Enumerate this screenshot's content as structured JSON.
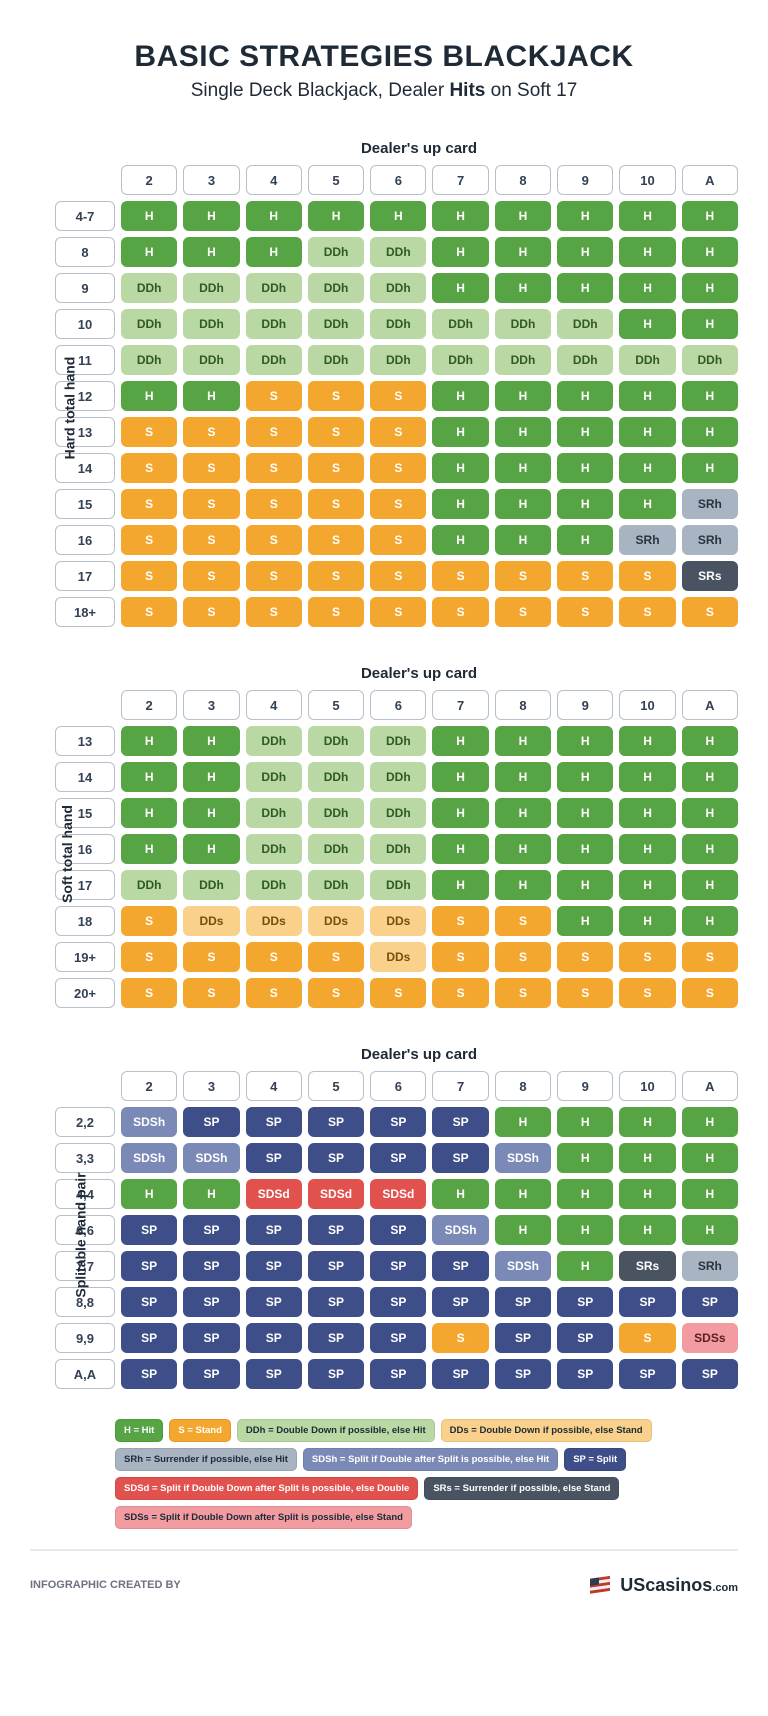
{
  "title": "BASIC STRATEGIES BLACKJACK",
  "subtitle_pre": "Single Deck Blackjack, Dealer ",
  "subtitle_bold": "Hits",
  "subtitle_post": " on Soft 17",
  "dealer_label": "Dealer's up card",
  "dealer_cards": [
    "2",
    "3",
    "4",
    "5",
    "6",
    "7",
    "8",
    "9",
    "10",
    "A"
  ],
  "colors": {
    "H": "#57a445",
    "S": "#f3a72e",
    "DDh": "#b9d8a3",
    "DDs": "#f9d18a",
    "SRh": "#a9b4c2",
    "SRs": "#4a5361",
    "SP": "#3e4e88",
    "SDSh": "#7b89b6",
    "SDSd": "#e1524f",
    "SDSs": "#f29ba0"
  },
  "text_colors": {
    "DDh": "#2f5a22",
    "DDs": "#7a4d0a",
    "SDSh": "#ffffff",
    "SRh": "#2b3340",
    "SDSs": "#5a1f23"
  },
  "hard": {
    "side": "Hard total hand",
    "rows": [
      "4-7",
      "8",
      "9",
      "10",
      "11",
      "12",
      "13",
      "14",
      "15",
      "16",
      "17",
      "18+"
    ],
    "cells": [
      [
        "H",
        "H",
        "H",
        "H",
        "H",
        "H",
        "H",
        "H",
        "H",
        "H"
      ],
      [
        "H",
        "H",
        "H",
        "DDh",
        "DDh",
        "H",
        "H",
        "H",
        "H",
        "H"
      ],
      [
        "DDh",
        "DDh",
        "DDh",
        "DDh",
        "DDh",
        "H",
        "H",
        "H",
        "H",
        "H"
      ],
      [
        "DDh",
        "DDh",
        "DDh",
        "DDh",
        "DDh",
        "DDh",
        "DDh",
        "DDh",
        "H",
        "H"
      ],
      [
        "DDh",
        "DDh",
        "DDh",
        "DDh",
        "DDh",
        "DDh",
        "DDh",
        "DDh",
        "DDh",
        "DDh"
      ],
      [
        "H",
        "H",
        "S",
        "S",
        "S",
        "H",
        "H",
        "H",
        "H",
        "H"
      ],
      [
        "S",
        "S",
        "S",
        "S",
        "S",
        "H",
        "H",
        "H",
        "H",
        "H"
      ],
      [
        "S",
        "S",
        "S",
        "S",
        "S",
        "H",
        "H",
        "H",
        "H",
        "H"
      ],
      [
        "S",
        "S",
        "S",
        "S",
        "S",
        "H",
        "H",
        "H",
        "H",
        "SRh"
      ],
      [
        "S",
        "S",
        "S",
        "S",
        "S",
        "H",
        "H",
        "H",
        "SRh",
        "SRh"
      ],
      [
        "S",
        "S",
        "S",
        "S",
        "S",
        "S",
        "S",
        "S",
        "S",
        "SRs"
      ],
      [
        "S",
        "S",
        "S",
        "S",
        "S",
        "S",
        "S",
        "S",
        "S",
        "S"
      ]
    ]
  },
  "soft": {
    "side": "Soft total hand",
    "rows": [
      "13",
      "14",
      "15",
      "16",
      "17",
      "18",
      "19+",
      "20+"
    ],
    "cells": [
      [
        "H",
        "H",
        "DDh",
        "DDh",
        "DDh",
        "H",
        "H",
        "H",
        "H",
        "H"
      ],
      [
        "H",
        "H",
        "DDh",
        "DDh",
        "DDh",
        "H",
        "H",
        "H",
        "H",
        "H"
      ],
      [
        "H",
        "H",
        "DDh",
        "DDh",
        "DDh",
        "H",
        "H",
        "H",
        "H",
        "H"
      ],
      [
        "H",
        "H",
        "DDh",
        "DDh",
        "DDh",
        "H",
        "H",
        "H",
        "H",
        "H"
      ],
      [
        "DDh",
        "DDh",
        "DDh",
        "DDh",
        "DDh",
        "H",
        "H",
        "H",
        "H",
        "H"
      ],
      [
        "S",
        "DDs",
        "DDs",
        "DDs",
        "DDs",
        "S",
        "S",
        "H",
        "H",
        "H"
      ],
      [
        "S",
        "S",
        "S",
        "S",
        "DDs",
        "S",
        "S",
        "S",
        "S",
        "S"
      ],
      [
        "S",
        "S",
        "S",
        "S",
        "S",
        "S",
        "S",
        "S",
        "S",
        "S"
      ]
    ]
  },
  "split": {
    "side": "Splitable hand pair",
    "rows": [
      "2,2",
      "3,3",
      "4,4",
      "6,6",
      "7,7",
      "8,8",
      "9,9",
      "A,A"
    ],
    "cells": [
      [
        "SDSh",
        "SP",
        "SP",
        "SP",
        "SP",
        "SP",
        "H",
        "H",
        "H",
        "H"
      ],
      [
        "SDSh",
        "SDSh",
        "SP",
        "SP",
        "SP",
        "SP",
        "SDSh",
        "H",
        "H",
        "H"
      ],
      [
        "H",
        "H",
        "SDSd",
        "SDSd",
        "SDSd",
        "H",
        "H",
        "H",
        "H",
        "H"
      ],
      [
        "SP",
        "SP",
        "SP",
        "SP",
        "SP",
        "SDSh",
        "H",
        "H",
        "H",
        "H"
      ],
      [
        "SP",
        "SP",
        "SP",
        "SP",
        "SP",
        "SP",
        "SDSh",
        "H",
        "SRs",
        "SRh"
      ],
      [
        "SP",
        "SP",
        "SP",
        "SP",
        "SP",
        "SP",
        "SP",
        "SP",
        "SP",
        "SP"
      ],
      [
        "SP",
        "SP",
        "SP",
        "SP",
        "SP",
        "S",
        "SP",
        "SP",
        "S",
        "SDSs"
      ],
      [
        "SP",
        "SP",
        "SP",
        "SP",
        "SP",
        "SP",
        "SP",
        "SP",
        "SP",
        "SP"
      ]
    ]
  },
  "legend": [
    {
      "code": "H",
      "text": "H = Hit"
    },
    {
      "code": "S",
      "text": "S = Stand"
    },
    {
      "code": "DDh",
      "text": "DDh = Double Down if possible, else Hit"
    },
    {
      "code": "DDs",
      "text": "DDs = Double Down if possible, else Stand"
    },
    {
      "code": "SRh",
      "text": "SRh = Surrender if possible, else Hit"
    },
    {
      "code": "SDSh",
      "text": "SDSh = Split if Double after Split is possible, else Hit"
    },
    {
      "code": "SP",
      "text": "SP = Split"
    },
    {
      "code": "SDSd",
      "text": "SDSd = Split if Double Down after Split is possible, else Double"
    },
    {
      "code": "SRs",
      "text": "SRs = Surrender if possible, else Stand"
    },
    {
      "code": "SDSs",
      "text": "SDSs = Split if Double Down after Split is possible, else Stand"
    }
  ],
  "footer_text": "INFOGRAPHIC CREATED BY",
  "brand_us": "US",
  "brand_cas": "casinos",
  "brand_com": ".com"
}
